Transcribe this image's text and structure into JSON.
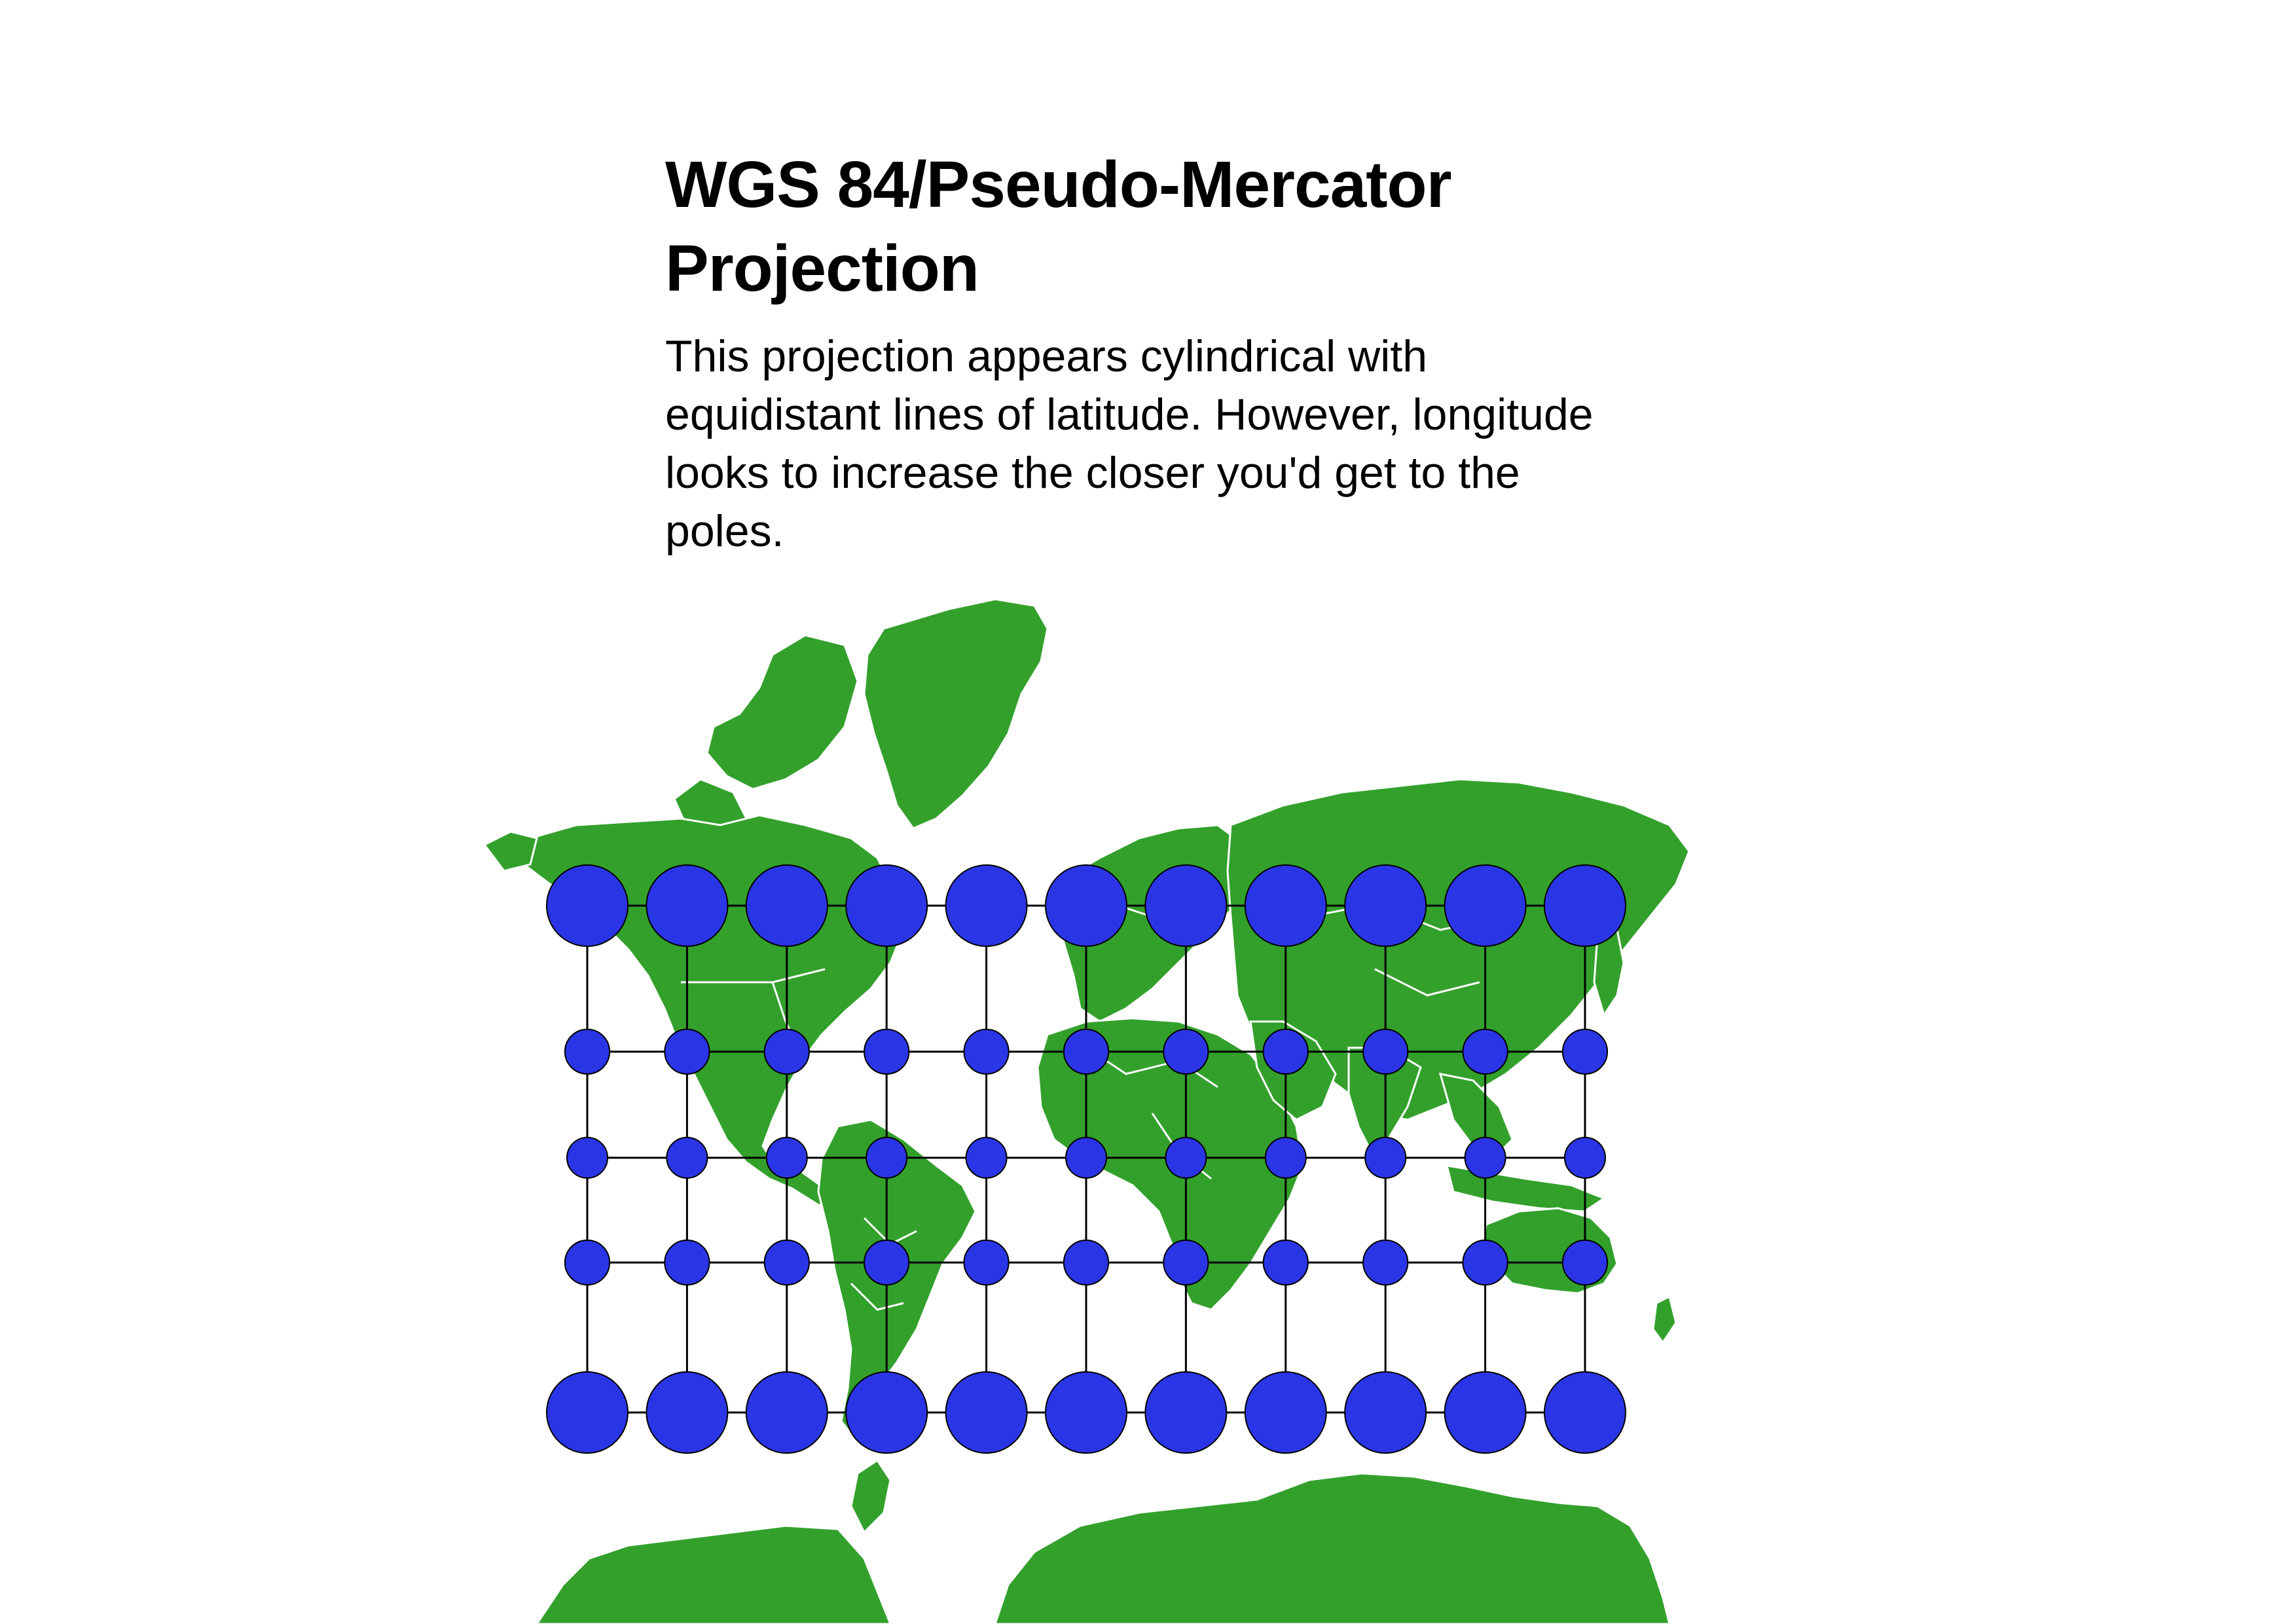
{
  "page": {
    "title": "WGS 84/Pseudo-Mercator Projection",
    "description": "This projection appears cylindrical with equidistant lines of latitude. However, longitude looks to increase the closer you'd get to the poles."
  },
  "map": {
    "projection": "WGS 84/Pseudo-Mercator",
    "features": [
      "world-landmasses",
      "country-borders",
      "tissot-indicatrix-circles",
      "graticule-grid"
    ],
    "colors": {
      "land": "#33a02c",
      "borders": "#ffffff",
      "indicatrix_fill": "#2a36e6",
      "indicatrix_stroke": "#000000",
      "graticule": "#000000",
      "background": "#ffffff"
    },
    "indicatrix_grid": {
      "columns": 11,
      "rows": 5,
      "relative_size_by_row": [
        2.0,
        1.1,
        1.0,
        1.1,
        2.0
      ]
    }
  }
}
